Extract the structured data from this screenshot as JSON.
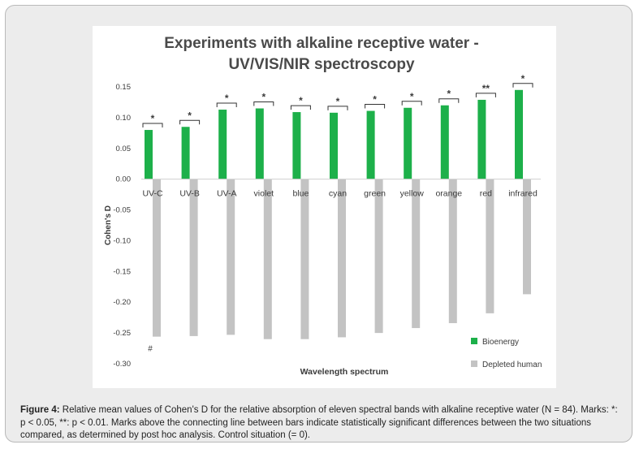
{
  "caption": {
    "label": "Figure 4:",
    "text": " Relative mean values of Cohen's D for the relative absorption of eleven spectral bands with alkaline receptive water (N = 84). Marks: *: p < 0.05, **: p < 0.01. Marks above the connecting line between bars indicate statistically significant differences between the two situations compared, as determined by post hoc analysis. Control situation (= 0)."
  },
  "chart_data": {
    "type": "bar",
    "title": "Experiments with alkaline receptive water - UV/VIS/NIR spectroscopy",
    "title_lines": [
      "Experiments with alkaline receptive water -",
      "UV/VIS/NIR spectroscopy"
    ],
    "xlabel": "Wavelength spectrum",
    "ylabel": "Cohen's D",
    "ylim": [
      -0.3,
      0.15
    ],
    "yticks": [
      0.15,
      0.1,
      0.05,
      0.0,
      -0.05,
      -0.1,
      -0.15,
      -0.2,
      -0.25,
      -0.3
    ],
    "ytick_labels": [
      "0.15",
      "0.10",
      "0.05",
      "0.00",
      "-0.05",
      "-0.10",
      "-0.15",
      "-0.20",
      "-0.25",
      "-0.30"
    ],
    "categories": [
      "UV-C",
      "UV-B",
      "UV-A",
      "violet",
      "blue",
      "cyan",
      "green",
      "yellow",
      "orange",
      "red",
      "infrared"
    ],
    "series": [
      {
        "name": "Bioenergy",
        "color": "#1db04a",
        "values": [
          0.08,
          0.085,
          0.113,
          0.115,
          0.109,
          0.108,
          0.111,
          0.116,
          0.12,
          0.129,
          0.145
        ]
      },
      {
        "name": "Depleted human",
        "color": "#c3c3c3",
        "values": [
          -0.256,
          -0.255,
          -0.253,
          -0.26,
          -0.26,
          -0.257,
          -0.25,
          -0.242,
          -0.234,
          -0.218,
          -0.187
        ]
      }
    ],
    "significance": [
      "*",
      "*",
      "*",
      "*",
      "*",
      "*",
      "*",
      "*",
      "*",
      "**",
      "*"
    ],
    "annotations": [
      {
        "category": "UV-C",
        "text": "#"
      }
    ],
    "legend_position": "bottom-right",
    "grid": false
  }
}
